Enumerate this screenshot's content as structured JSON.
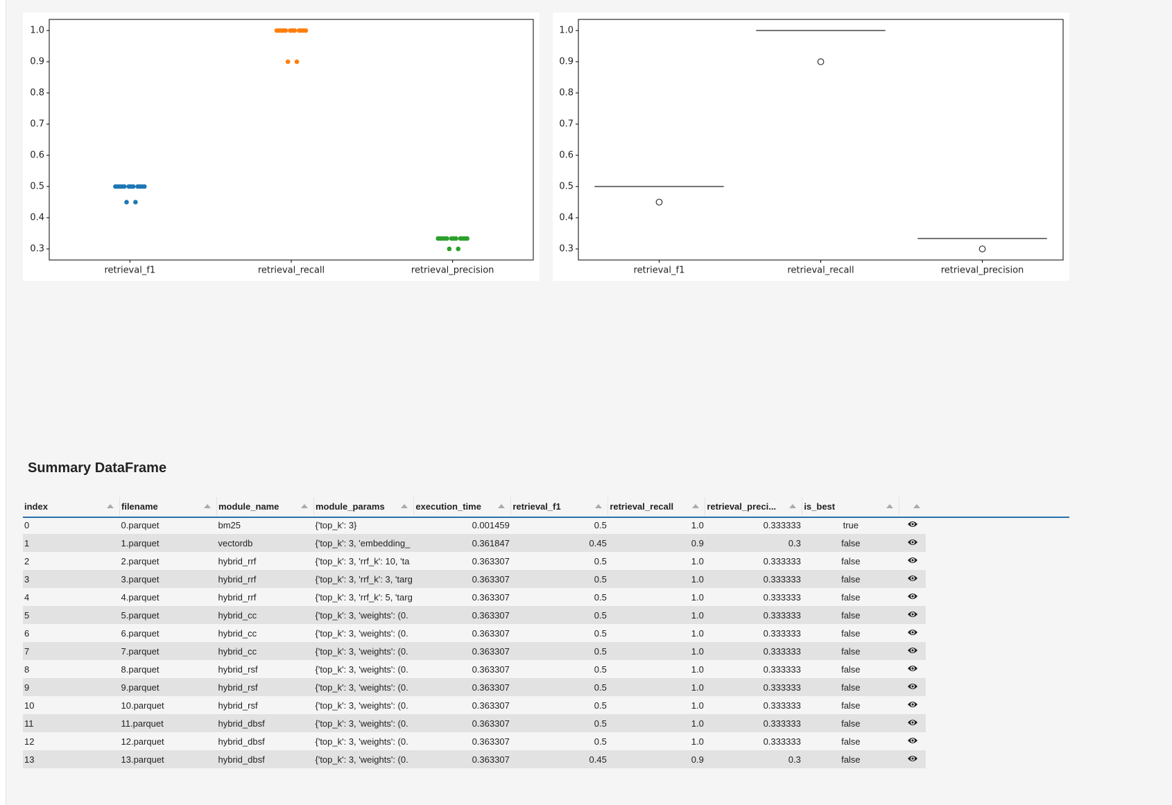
{
  "chart_data": [
    {
      "type": "strip",
      "categories": [
        "retrieval_f1",
        "retrieval_recall",
        "retrieval_precision"
      ],
      "colors": [
        "#1f77b4",
        "#ff7f0e",
        "#2ca02c"
      ],
      "values": [
        [
          0.5,
          0.45,
          0.5,
          0.5,
          0.5,
          0.5,
          0.5,
          0.5,
          0.5,
          0.5,
          0.5,
          0.5,
          0.5,
          0.45
        ],
        [
          1.0,
          0.9,
          1.0,
          1.0,
          1.0,
          1.0,
          1.0,
          1.0,
          1.0,
          1.0,
          1.0,
          1.0,
          1.0,
          0.9
        ],
        [
          0.333333,
          0.3,
          0.333333,
          0.333333,
          0.333333,
          0.333333,
          0.333333,
          0.333333,
          0.333333,
          0.333333,
          0.333333,
          0.333333,
          0.333333,
          0.3
        ]
      ],
      "ylim": [
        0.2644,
        1.0356
      ],
      "yticks": [
        0.3,
        0.4,
        0.5,
        0.6,
        0.7,
        0.8,
        0.9,
        {
          "value": 1,
          "label": "1.0"
        }
      ]
    },
    {
      "type": "box",
      "categories": [
        "retrieval_f1",
        "retrieval_recall",
        "retrieval_precision"
      ],
      "boxes": [
        {
          "whislo": 0.5,
          "q1": 0.5,
          "median": 0.5,
          "q3": 0.5,
          "whishi": 0.5,
          "fliers": [
            0.45
          ]
        },
        {
          "whislo": 1.0,
          "q1": 1.0,
          "median": 1.0,
          "q3": 1.0,
          "whishi": 1.0,
          "fliers": [
            0.9
          ]
        },
        {
          "whislo": 0.333333,
          "q1": 0.333333,
          "median": 0.333333,
          "q3": 0.333333,
          "whishi": 0.333333,
          "fliers": [
            0.3
          ]
        }
      ],
      "ylim": [
        0.2644,
        1.0356
      ],
      "yticks": [
        0.3,
        0.4,
        0.5,
        0.6,
        0.7,
        0.8,
        0.9,
        {
          "value": 1,
          "label": "1.0"
        }
      ]
    }
  ],
  "table": {
    "title": "Summary DataFrame",
    "columns": [
      "index",
      "filename",
      "module_name",
      "module_params",
      "execution_time",
      "retrieval_f1",
      "retrieval_recall",
      "retrieval_preci...",
      "is_best"
    ],
    "rows": [
      [
        "0",
        "0.parquet",
        "bm25",
        "{'top_k': 3}",
        "0.001459",
        "0.5",
        "1.0",
        "0.333333",
        "true"
      ],
      [
        "1",
        "1.parquet",
        "vectordb",
        "{'top_k': 3, 'embedding_",
        "0.361847",
        "0.45",
        "0.9",
        "0.3",
        "false"
      ],
      [
        "2",
        "2.parquet",
        "hybrid_rrf",
        "{'top_k': 3, 'rrf_k': 10, 'ta",
        "0.363307",
        "0.5",
        "1.0",
        "0.333333",
        "false"
      ],
      [
        "3",
        "3.parquet",
        "hybrid_rrf",
        "{'top_k': 3, 'rrf_k': 3, 'targ",
        "0.363307",
        "0.5",
        "1.0",
        "0.333333",
        "false"
      ],
      [
        "4",
        "4.parquet",
        "hybrid_rrf",
        "{'top_k': 3, 'rrf_k': 5, 'targ",
        "0.363307",
        "0.5",
        "1.0",
        "0.333333",
        "false"
      ],
      [
        "5",
        "5.parquet",
        "hybrid_cc",
        "{'top_k': 3, 'weights': (0.",
        "0.363307",
        "0.5",
        "1.0",
        "0.333333",
        "false"
      ],
      [
        "6",
        "6.parquet",
        "hybrid_cc",
        "{'top_k': 3, 'weights': (0.",
        "0.363307",
        "0.5",
        "1.0",
        "0.333333",
        "false"
      ],
      [
        "7",
        "7.parquet",
        "hybrid_cc",
        "{'top_k': 3, 'weights': (0.",
        "0.363307",
        "0.5",
        "1.0",
        "0.333333",
        "false"
      ],
      [
        "8",
        "8.parquet",
        "hybrid_rsf",
        "{'top_k': 3, 'weights': (0.",
        "0.363307",
        "0.5",
        "1.0",
        "0.333333",
        "false"
      ],
      [
        "9",
        "9.parquet",
        "hybrid_rsf",
        "{'top_k': 3, 'weights': (0.",
        "0.363307",
        "0.5",
        "1.0",
        "0.333333",
        "false"
      ],
      [
        "10",
        "10.parquet",
        "hybrid_rsf",
        "{'top_k': 3, 'weights': (0.",
        "0.363307",
        "0.5",
        "1.0",
        "0.333333",
        "false"
      ],
      [
        "11",
        "11.parquet",
        "hybrid_dbsf",
        "{'top_k': 3, 'weights': (0.",
        "0.363307",
        "0.5",
        "1.0",
        "0.333333",
        "false"
      ],
      [
        "12",
        "12.parquet",
        "hybrid_dbsf",
        "{'top_k': 3, 'weights': (0.",
        "0.363307",
        "0.5",
        "1.0",
        "0.333333",
        "false"
      ],
      [
        "13",
        "13.parquet",
        "hybrid_dbsf",
        "{'top_k': 3, 'weights': (0.",
        "0.363307",
        "0.45",
        "0.9",
        "0.3",
        "false"
      ]
    ]
  }
}
